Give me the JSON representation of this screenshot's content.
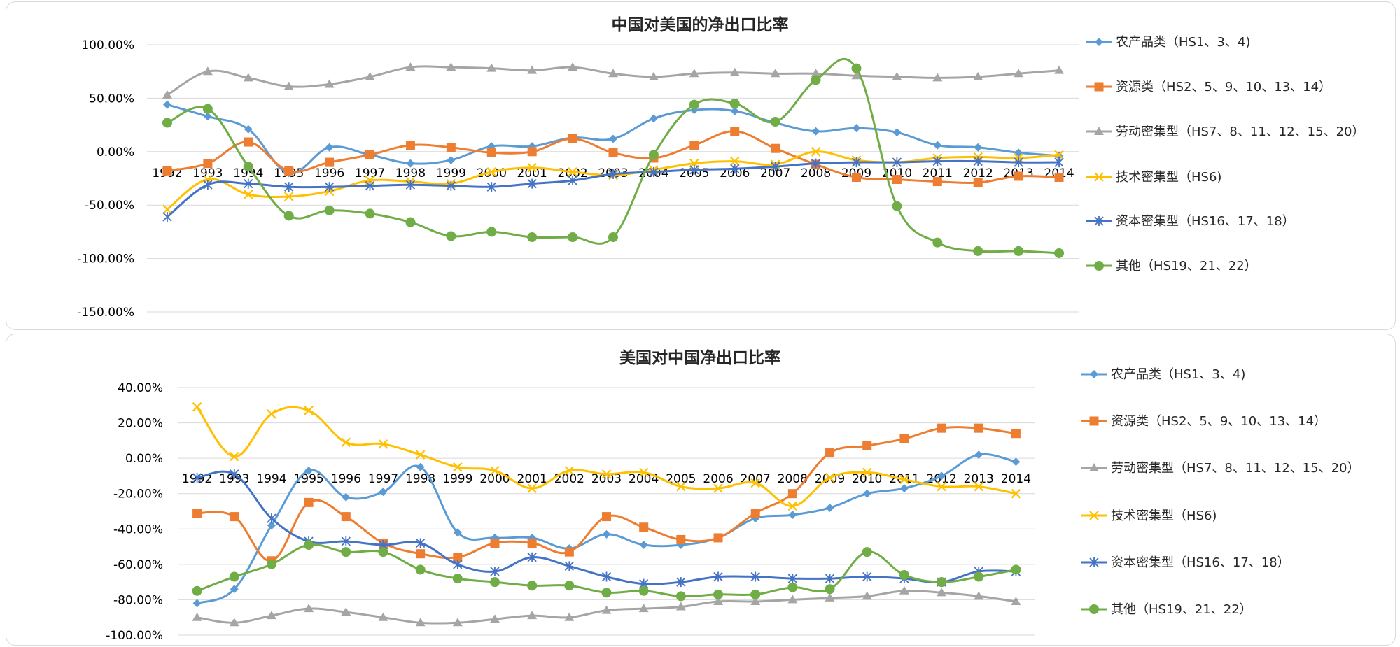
{
  "chart_data": [
    {
      "type": "line",
      "title": "中国对美国的净出口比率",
      "categories": [
        "1992",
        "1993",
        "1994",
        "1995",
        "1996",
        "1997",
        "1998",
        "1999",
        "2000",
        "2001",
        "2002",
        "2003",
        "2004",
        "2005",
        "2006",
        "2007",
        "2008",
        "2009",
        "2010",
        "2011",
        "2012",
        "2013",
        "2014"
      ],
      "y_tick_labels": [
        "100.00%",
        "50.00%",
        "0.00%",
        "-50.00%",
        "-100.00%",
        "-150.00%"
      ],
      "ylim": [
        -150,
        100
      ],
      "y_unit": "%",
      "grid": true,
      "legend_position": "right",
      "series": [
        {
          "name": "农产品类（HS1、3、4)",
          "color": "#5B9BD5",
          "marker": "diamond",
          "values": [
            44,
            33,
            21,
            -20,
            4,
            -3,
            -11,
            -8,
            5,
            5,
            13,
            12,
            31,
            39,
            38,
            27,
            19,
            22,
            18,
            6,
            4,
            -1,
            -4
          ]
        },
        {
          "name": "资源类（HS2、5、9、10、13、14）",
          "color": "#ED7D31",
          "marker": "square",
          "values": [
            -18,
            -11,
            9,
            -18,
            -10,
            -3,
            6,
            4,
            -1,
            0,
            12,
            -1,
            -6,
            6,
            19,
            3,
            -12,
            -24,
            -26,
            -28,
            -29,
            -23,
            -24
          ]
        },
        {
          "name": "劳动密集型（HS7、8、11、12、15、20）",
          "color": "#A5A5A5",
          "marker": "triangle",
          "values": [
            53,
            75,
            69,
            61,
            63,
            70,
            79,
            79,
            78,
            76,
            79,
            73,
            70,
            73,
            74,
            73,
            73,
            71,
            70,
            69,
            70,
            73,
            76
          ]
        },
        {
          "name": "技术密集型（HS6)",
          "color": "#FFC000",
          "marker": "x",
          "values": [
            -54,
            -26,
            -40,
            -42,
            -37,
            -27,
            -28,
            -30,
            -19,
            -15,
            -19,
            -22,
            -17,
            -11,
            -9,
            -12,
            0,
            -8,
            -10,
            -6,
            -5,
            -6,
            -3
          ]
        },
        {
          "name": "资本密集型（HS16、17、18）",
          "color": "#4472C4",
          "marker": "star",
          "values": [
            -61,
            -31,
            -30,
            -33,
            -33,
            -32,
            -31,
            -32,
            -33,
            -30,
            -27,
            -21,
            -19,
            -17,
            -16,
            -14,
            -11,
            -10,
            -10,
            -9,
            -9,
            -10,
            -10
          ]
        },
        {
          "name": "其他（HS19、21、22）",
          "color": "#70AD47",
          "marker": "circle",
          "values": [
            27,
            40,
            -14,
            -60,
            -55,
            -58,
            -66,
            -79,
            -75,
            -80,
            -80,
            -80,
            -3,
            44,
            45,
            28,
            67,
            78,
            -51,
            -85,
            -93,
            -93,
            -95
          ]
        }
      ]
    },
    {
      "type": "line",
      "title": "美国对中国净出口比率",
      "categories": [
        "1992",
        "1993",
        "1994",
        "1995",
        "1996",
        "1997",
        "1998",
        "1999",
        "2000",
        "2001",
        "2002",
        "2003",
        "2004",
        "2005",
        "2006",
        "2007",
        "2008",
        "2009",
        "2010",
        "2011",
        "2012",
        "2013",
        "2014"
      ],
      "y_tick_labels": [
        "40.00%",
        "20.00%",
        "0.00%",
        "-20.00%",
        "-40.00%",
        "-60.00%",
        "-80.00%",
        "-100.00%"
      ],
      "ylim": [
        -100,
        40
      ],
      "y_unit": "%",
      "grid": true,
      "legend_position": "right",
      "series": [
        {
          "name": "农产品类（HS1、3、4)",
          "color": "#5B9BD5",
          "marker": "diamond",
          "values": [
            -82,
            -74,
            -38,
            -7,
            -22,
            -19,
            -5,
            -42,
            -45,
            -45,
            -51,
            -43,
            -49,
            -49,
            -45,
            -34,
            -32,
            -28,
            -20,
            -17,
            -10,
            2,
            -2
          ]
        },
        {
          "name": "资源类（HS2、5、9、10、13、14）",
          "color": "#ED7D31",
          "marker": "square",
          "values": [
            -31,
            -33,
            -58,
            -25,
            -33,
            -48,
            -54,
            -56,
            -48,
            -48,
            -53,
            -33,
            -39,
            -46,
            -45,
            -31,
            -20,
            3,
            7,
            11,
            17,
            17,
            14
          ]
        },
        {
          "name": "劳动密集型（HS7、8、11、12、15、20）",
          "color": "#A5A5A5",
          "marker": "triangle",
          "values": [
            -90,
            -93,
            -89,
            -85,
            -87,
            -90,
            -93,
            -93,
            -91,
            -89,
            -90,
            -86,
            -85,
            -84,
            -81,
            -81,
            -80,
            -79,
            -78,
            -75,
            -76,
            -78,
            -81
          ]
        },
        {
          "name": "技术密集型（HS6)",
          "color": "#FFC000",
          "marker": "x",
          "values": [
            29,
            1,
            25,
            27,
            9,
            8,
            2,
            -5,
            -7,
            -17,
            -7,
            -9,
            -8,
            -16,
            -17,
            -14,
            -27,
            -11,
            -8,
            -12,
            -16,
            -16,
            -20
          ]
        },
        {
          "name": "资本密集型（HS16、17、18）",
          "color": "#4472C4",
          "marker": "star",
          "values": [
            -11,
            -9,
            -34,
            -47,
            -47,
            -49,
            -48,
            -60,
            -64,
            -56,
            -61,
            -67,
            -71,
            -70,
            -67,
            -67,
            -68,
            -68,
            -67,
            -68,
            -70,
            -64,
            -64
          ]
        },
        {
          "name": "其他（HS19、21、22）",
          "color": "#70AD47",
          "marker": "circle",
          "values": [
            -75,
            -67,
            -60,
            -49,
            -53,
            -53,
            -63,
            -68,
            -70,
            -72,
            -72,
            -76,
            -75,
            -78,
            -77,
            -77,
            -73,
            -74,
            -53,
            -66,
            -70,
            -67,
            -63
          ]
        }
      ]
    }
  ]
}
